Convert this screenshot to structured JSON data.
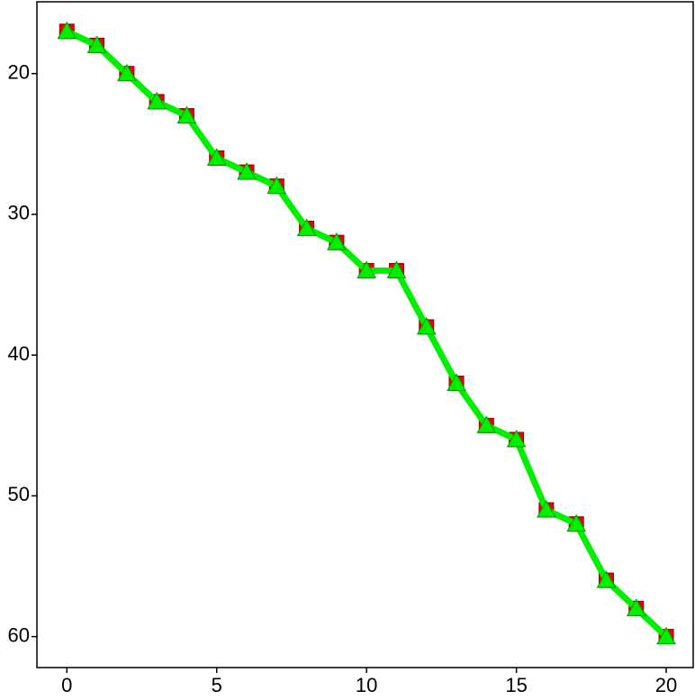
{
  "chart_data": {
    "type": "line",
    "x": [
      0,
      1,
      2,
      3,
      4,
      5,
      6,
      7,
      8,
      9,
      10,
      11,
      12,
      13,
      14,
      15,
      16,
      17,
      18,
      19,
      20
    ],
    "series": [
      {
        "color": "#0000ff",
        "linestyle": "solid",
        "marker": "none",
        "values": [
          17,
          18,
          20,
          22,
          23,
          26,
          27,
          28,
          31,
          32,
          34,
          34,
          38,
          42,
          45,
          46,
          51,
          52,
          56,
          58,
          60
        ]
      },
      {
        "color": "#ff0000",
        "linestyle": "dashed",
        "marker": "square",
        "values": [
          17,
          18,
          20,
          22,
          23,
          26,
          27,
          28,
          31,
          32,
          34,
          34,
          38,
          42,
          45,
          46,
          51,
          52,
          56,
          58,
          60
        ]
      },
      {
        "color": "#00ee00",
        "linestyle": "solid",
        "marker": "triangle",
        "values": [
          17,
          18,
          20,
          22,
          23,
          26,
          27,
          28,
          31,
          32,
          34,
          34,
          38,
          42,
          45,
          46,
          51,
          52,
          56,
          58,
          60
        ]
      }
    ],
    "xlim": [
      -1,
      20.9
    ],
    "xticks": [
      0,
      5,
      10,
      15,
      20
    ],
    "ylim": [
      14.9,
      62.2
    ],
    "yticks": [
      20,
      30,
      40,
      50,
      60
    ],
    "y_inverted": true,
    "grid": false
  }
}
